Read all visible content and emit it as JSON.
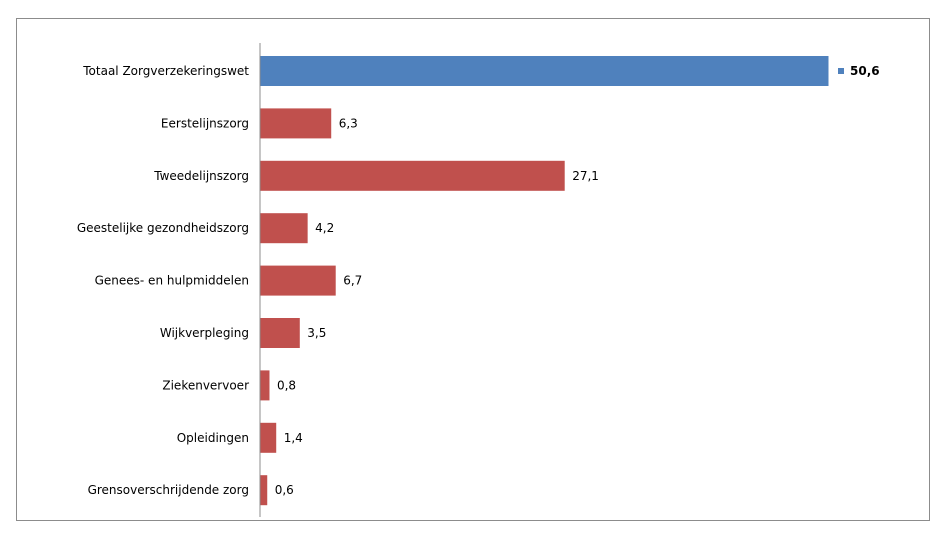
{
  "chart_data": {
    "type": "bar",
    "orientation": "horizontal",
    "categories": [
      "Totaal Zorgverzekeringswet",
      "Eerstelijnszorg",
      "Tweedelijnszorg",
      "Geestelijke gezondheidszorg",
      "Genees- en hulpmiddelen",
      "Wijkverpleging",
      "Ziekenvervoer",
      "Opleidingen",
      "Grensoverschrijdende zorg"
    ],
    "values": [
      50.6,
      6.3,
      27.1,
      4.2,
      6.7,
      3.5,
      0.8,
      1.4,
      0.6
    ],
    "value_labels": [
      "50,6",
      "6,3",
      "27,1",
      "4,2",
      "6,7",
      "3,5",
      "0,8",
      "1,4",
      "0,6"
    ],
    "bar_colors": [
      "#4f81bd",
      "#c0504d",
      "#c0504d",
      "#c0504d",
      "#c0504d",
      "#c0504d",
      "#c0504d",
      "#c0504d",
      "#c0504d"
    ],
    "highlight_marker_color": "#4f81bd",
    "xlim": [
      0,
      50.6
    ],
    "grid": false,
    "legend": "none",
    "title": "",
    "xlabel": "",
    "ylabel": ""
  }
}
